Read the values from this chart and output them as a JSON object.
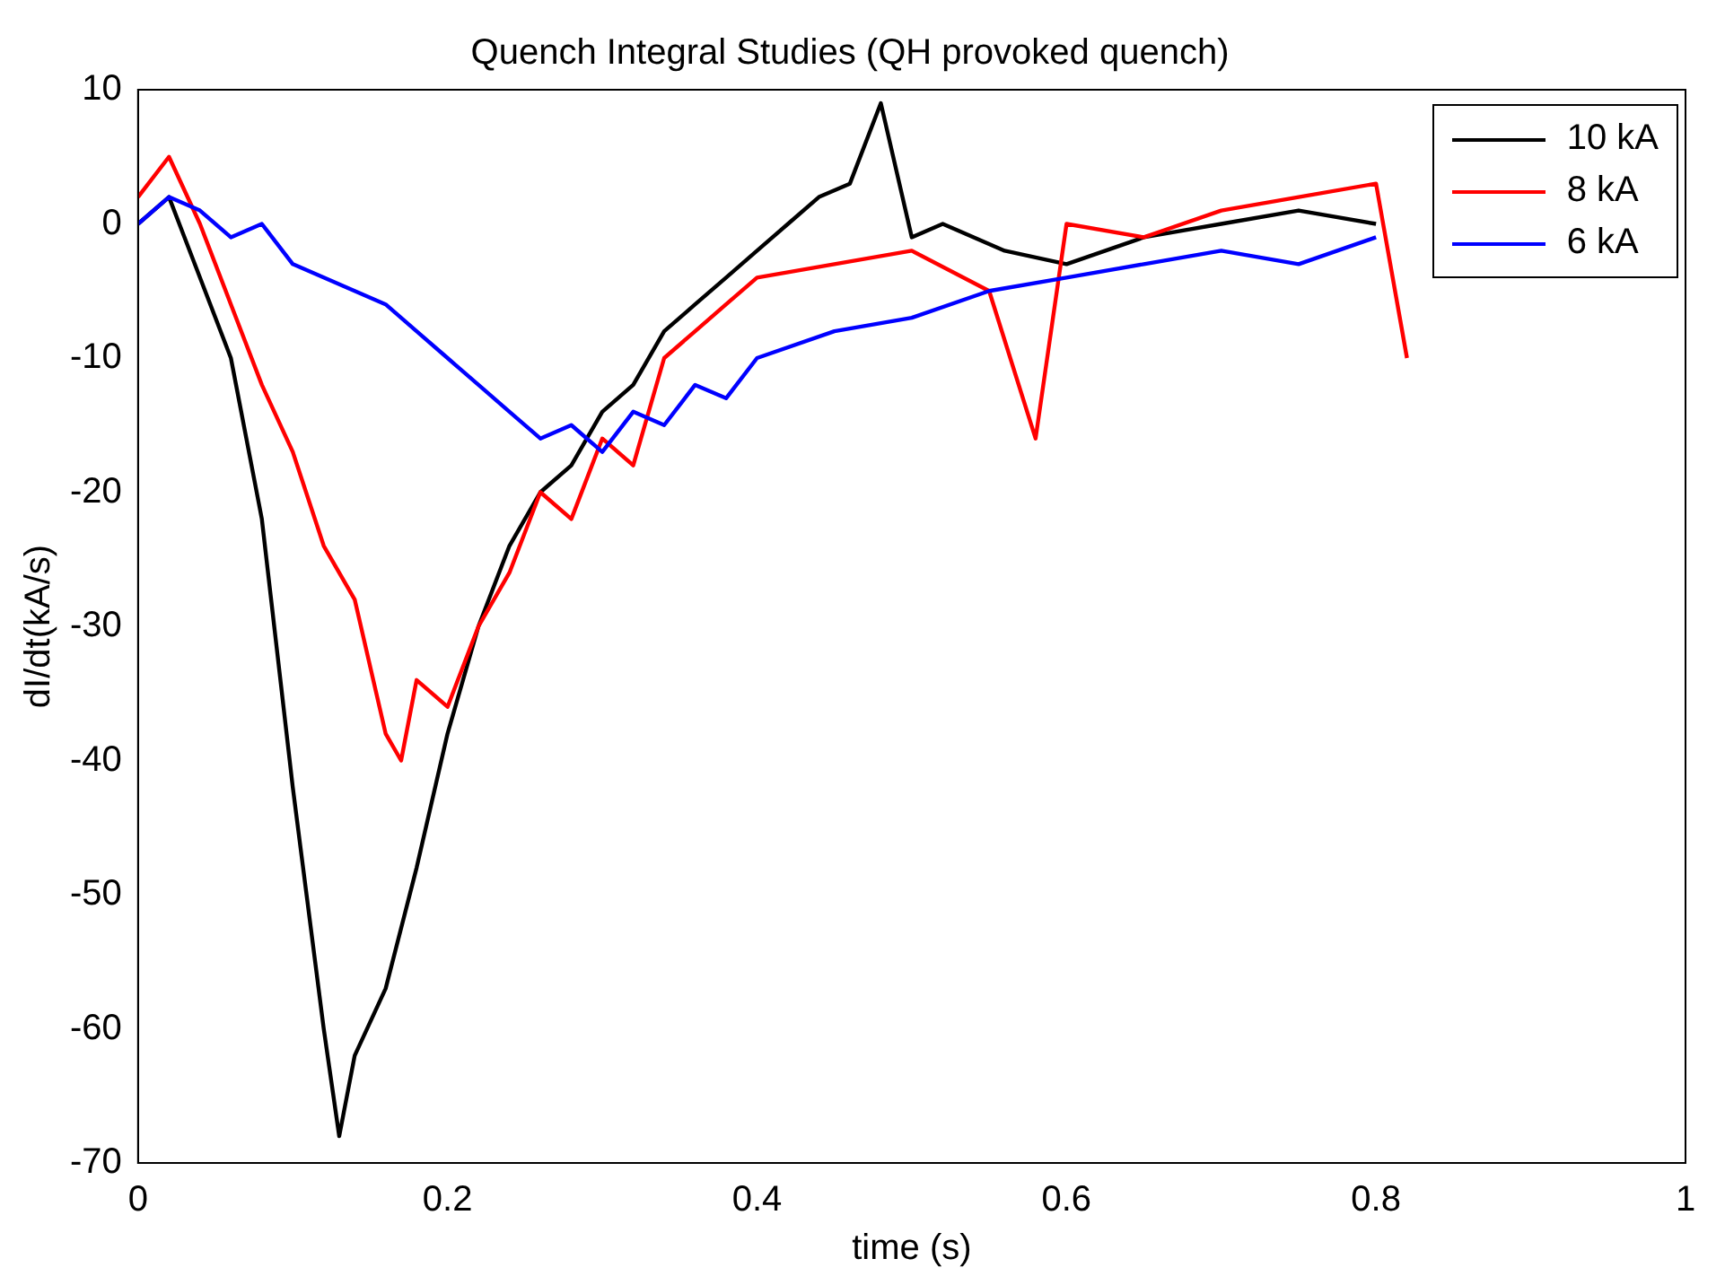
{
  "chart_data": {
    "type": "line",
    "title": "Quench Integral Studies (QH provoked quench)",
    "xlabel": "time (s)",
    "ylabel": "dI/dt(kA/s)",
    "xlim": [
      0,
      1
    ],
    "xticks": [
      0,
      0.2,
      0.4,
      0.6,
      0.8,
      1
    ],
    "ylim": [
      -70,
      10
    ],
    "yticks": [
      -70,
      -60,
      -50,
      -40,
      -30,
      -20,
      -10,
      0,
      10
    ],
    "grid": false,
    "legend": "top right",
    "marker": "none",
    "line_style": "solid",
    "series": [
      {
        "name": "10 kA",
        "color": "#000000",
        "x": [
          0,
          0.02,
          0.04,
          0.06,
          0.08,
          0.1,
          0.12,
          0.13,
          0.14,
          0.16,
          0.18,
          0.2,
          0.22,
          0.24,
          0.26,
          0.28,
          0.3,
          0.32,
          0.34,
          0.36,
          0.38,
          0.4,
          0.42,
          0.44,
          0.46,
          0.48,
          0.5,
          0.52,
          0.56,
          0.6,
          0.65,
          0.7,
          0.75,
          0.8
        ],
        "values": [
          0,
          2,
          -4,
          -10,
          -22,
          -42,
          -60,
          -68,
          -62,
          -57,
          -48,
          -38,
          -30,
          -24,
          -20,
          -18,
          -14,
          -12,
          -8,
          -6,
          -4,
          -2,
          0,
          2,
          3,
          9,
          -1,
          0,
          -2,
          -3,
          -1,
          0,
          1,
          0
        ]
      },
      {
        "name": "8 kA",
        "color": "#ff0000",
        "x": [
          0,
          0.02,
          0.04,
          0.06,
          0.08,
          0.1,
          0.12,
          0.14,
          0.16,
          0.17,
          0.18,
          0.2,
          0.22,
          0.24,
          0.26,
          0.28,
          0.3,
          0.32,
          0.34,
          0.36,
          0.38,
          0.4,
          0.45,
          0.5,
          0.55,
          0.58,
          0.6,
          0.65,
          0.7,
          0.75,
          0.8,
          0.82
        ],
        "values": [
          2,
          5,
          0,
          -6,
          -12,
          -17,
          -24,
          -28,
          -38,
          -40,
          -34,
          -36,
          -30,
          -26,
          -20,
          -22,
          -16,
          -18,
          -10,
          -8,
          -6,
          -4,
          -3,
          -2,
          -5,
          -16,
          0,
          -1,
          1,
          2,
          3,
          -10
        ]
      },
      {
        "name": "6 kA",
        "color": "#0000ff",
        "x": [
          0,
          0.02,
          0.04,
          0.06,
          0.08,
          0.1,
          0.12,
          0.14,
          0.16,
          0.18,
          0.2,
          0.22,
          0.24,
          0.26,
          0.28,
          0.3,
          0.32,
          0.34,
          0.36,
          0.38,
          0.4,
          0.45,
          0.5,
          0.55,
          0.6,
          0.65,
          0.7,
          0.75,
          0.8
        ],
        "values": [
          0,
          2,
          1,
          -1,
          0,
          -3,
          -4,
          -5,
          -6,
          -8,
          -10,
          -12,
          -14,
          -16,
          -15,
          -17,
          -14,
          -15,
          -12,
          -13,
          -10,
          -8,
          -7,
          -5,
          -4,
          -3,
          -2,
          -3,
          -1
        ]
      }
    ]
  }
}
